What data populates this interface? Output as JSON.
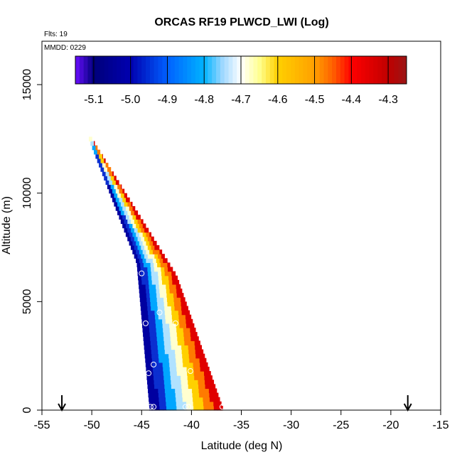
{
  "chart_data": {
    "type": "heatmap",
    "title": "ORCAS RF19 PLWCD_LWI (Log)",
    "xlabel": "Latitude (deg N)",
    "ylabel": "Altitude (m)",
    "xlim": [
      -55,
      -15
    ],
    "ylim": [
      0,
      17000
    ],
    "x_ticks": [
      -55,
      -50,
      -45,
      -40,
      -35,
      -30,
      -25,
      -20,
      -15
    ],
    "y_ticks": [
      0,
      5000,
      10000,
      15000
    ],
    "flights_label": "Flts: 19",
    "date_label": "MMDD: 0229",
    "colorbar": {
      "range": [
        -5.15,
        -4.25
      ],
      "ticks": [
        -5.1,
        -5.0,
        -4.9,
        -4.8,
        -4.7,
        -4.6,
        -4.5,
        -4.4,
        -4.3
      ],
      "bin_edges": [
        -5.15,
        -5.1,
        -5.0,
        -4.9,
        -4.8,
        -4.7,
        -4.6,
        -4.5,
        -4.4,
        -4.3,
        -4.25
      ],
      "colors": [
        "#6a0dff",
        "#0000a0",
        "#0b2fd0",
        "#00a6ff",
        "#b0e2ff",
        "#ffffd0",
        "#ffd000",
        "#ff7a00",
        "#e00000",
        "#9a1515"
      ]
    },
    "band": {
      "lower_edge": [
        [
          -50.3,
          12500
        ],
        [
          -45.5,
          6800
        ],
        [
          -44.2,
          0
        ]
      ],
      "upper_edge": [
        [
          -50.0,
          12500
        ],
        [
          -41.5,
          6200
        ],
        [
          -36.8,
          0
        ]
      ],
      "value_low": -5.1,
      "value_high": -4.3
    },
    "markers": [
      {
        "lat": -45.0,
        "alt": 6300
      },
      {
        "lat": -43.2,
        "alt": 4500
      },
      {
        "lat": -44.6,
        "alt": 4000
      },
      {
        "lat": -41.6,
        "alt": 4000
      },
      {
        "lat": -43.8,
        "alt": 2100
      },
      {
        "lat": -44.3,
        "alt": 1700
      },
      {
        "lat": -40.1,
        "alt": 1800
      },
      {
        "lat": -44.1,
        "alt": 150
      },
      {
        "lat": -43.8,
        "alt": 150
      },
      {
        "lat": -40.6,
        "alt": 150
      },
      {
        "lat": -40.3,
        "alt": 150
      },
      {
        "lat": -36.9,
        "alt": 150
      }
    ],
    "arrows": [
      {
        "lat": -53.0
      },
      {
        "lat": -18.3
      }
    ]
  }
}
